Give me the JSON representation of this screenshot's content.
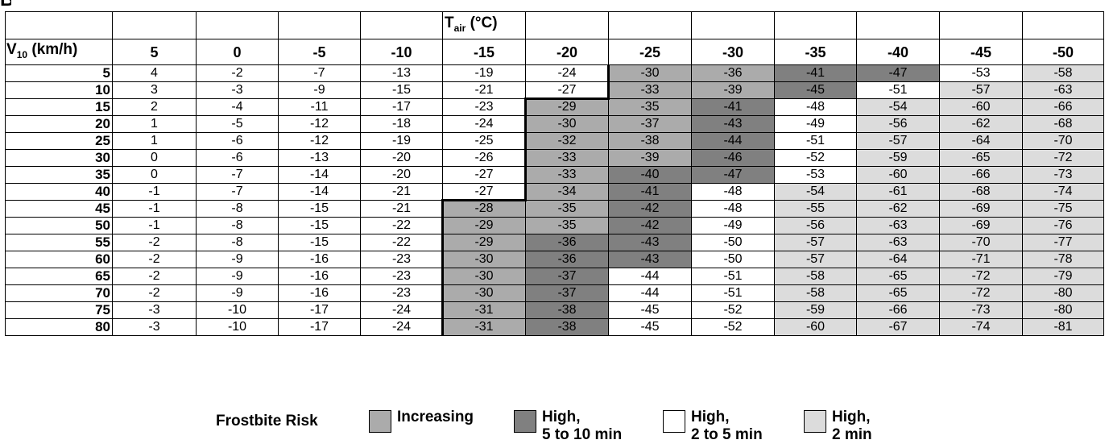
{
  "panel_label": "B",
  "table": {
    "temp_header": {
      "symbol": "T",
      "subscript": "air",
      "unit": " (°C)"
    },
    "wind_header": {
      "symbol": "V",
      "subscript": "10",
      "unit": " (km/h)"
    },
    "temperatures": [
      "5",
      "0",
      "-5",
      "-10",
      "-15",
      "-20",
      "-25",
      "-30",
      "-35",
      "-40",
      "-45",
      "-50"
    ],
    "rows": [
      {
        "wind": "5",
        "values": [
          "4",
          "-2",
          "-7",
          "-13",
          "-19",
          "-24",
          "-30",
          "-36",
          "-41",
          "-47",
          "-53",
          "-58"
        ],
        "risk": [
          "none",
          "none",
          "none",
          "none",
          "none",
          "none",
          "inc",
          "inc",
          "h510",
          "h510",
          "h25",
          "h2"
        ]
      },
      {
        "wind": "10",
        "values": [
          "3",
          "-3",
          "-9",
          "-15",
          "-21",
          "-27",
          "-33",
          "-39",
          "-45",
          "-51",
          "-57",
          "-63"
        ],
        "risk": [
          "none",
          "none",
          "none",
          "none",
          "none",
          "none",
          "inc",
          "inc",
          "h510",
          "h25",
          "h2",
          "h2"
        ]
      },
      {
        "wind": "15",
        "values": [
          "2",
          "-4",
          "-11",
          "-17",
          "-23",
          "-29",
          "-35",
          "-41",
          "-48",
          "-54",
          "-60",
          "-66"
        ],
        "risk": [
          "none",
          "none",
          "none",
          "none",
          "none",
          "inc",
          "inc",
          "h510",
          "h25",
          "h2",
          "h2",
          "h2"
        ]
      },
      {
        "wind": "20",
        "values": [
          "1",
          "-5",
          "-12",
          "-18",
          "-24",
          "-30",
          "-37",
          "-43",
          "-49",
          "-56",
          "-62",
          "-68"
        ],
        "risk": [
          "none",
          "none",
          "none",
          "none",
          "none",
          "inc",
          "inc",
          "h510",
          "h25",
          "h2",
          "h2",
          "h2"
        ]
      },
      {
        "wind": "25",
        "values": [
          "1",
          "-6",
          "-12",
          "-19",
          "-25",
          "-32",
          "-38",
          "-44",
          "-51",
          "-57",
          "-64",
          "-70"
        ],
        "risk": [
          "none",
          "none",
          "none",
          "none",
          "none",
          "inc",
          "inc",
          "h510",
          "h25",
          "h2",
          "h2",
          "h2"
        ]
      },
      {
        "wind": "30",
        "values": [
          "0",
          "-6",
          "-13",
          "-20",
          "-26",
          "-33",
          "-39",
          "-46",
          "-52",
          "-59",
          "-65",
          "-72"
        ],
        "risk": [
          "none",
          "none",
          "none",
          "none",
          "none",
          "inc",
          "inc",
          "h510",
          "h25",
          "h2",
          "h2",
          "h2"
        ]
      },
      {
        "wind": "35",
        "values": [
          "0",
          "-7",
          "-14",
          "-20",
          "-27",
          "-33",
          "-40",
          "-47",
          "-53",
          "-60",
          "-66",
          "-73"
        ],
        "risk": [
          "none",
          "none",
          "none",
          "none",
          "none",
          "inc",
          "h510",
          "h510",
          "h25",
          "h2",
          "h2",
          "h2"
        ]
      },
      {
        "wind": "40",
        "values": [
          "-1",
          "-7",
          "-14",
          "-21",
          "-27",
          "-34",
          "-41",
          "-48",
          "-54",
          "-61",
          "-68",
          "-74"
        ],
        "risk": [
          "none",
          "none",
          "none",
          "none",
          "none",
          "inc",
          "h510",
          "h25",
          "h2",
          "h2",
          "h2",
          "h2"
        ]
      },
      {
        "wind": "45",
        "values": [
          "-1",
          "-8",
          "-15",
          "-21",
          "-28",
          "-35",
          "-42",
          "-48",
          "-55",
          "-62",
          "-69",
          "-75"
        ],
        "risk": [
          "none",
          "none",
          "none",
          "none",
          "inc",
          "inc",
          "h510",
          "h25",
          "h2",
          "h2",
          "h2",
          "h2"
        ]
      },
      {
        "wind": "50",
        "values": [
          "-1",
          "-8",
          "-15",
          "-22",
          "-29",
          "-35",
          "-42",
          "-49",
          "-56",
          "-63",
          "-69",
          "-76"
        ],
        "risk": [
          "none",
          "none",
          "none",
          "none",
          "inc",
          "inc",
          "h510",
          "h25",
          "h2",
          "h2",
          "h2",
          "h2"
        ]
      },
      {
        "wind": "55",
        "values": [
          "-2",
          "-8",
          "-15",
          "-22",
          "-29",
          "-36",
          "-43",
          "-50",
          "-57",
          "-63",
          "-70",
          "-77"
        ],
        "risk": [
          "none",
          "none",
          "none",
          "none",
          "inc",
          "h510",
          "h510",
          "h25",
          "h2",
          "h2",
          "h2",
          "h2"
        ]
      },
      {
        "wind": "60",
        "values": [
          "-2",
          "-9",
          "-16",
          "-23",
          "-30",
          "-36",
          "-43",
          "-50",
          "-57",
          "-64",
          "-71",
          "-78"
        ],
        "risk": [
          "none",
          "none",
          "none",
          "none",
          "inc",
          "h510",
          "h510",
          "h25",
          "h2",
          "h2",
          "h2",
          "h2"
        ]
      },
      {
        "wind": "65",
        "values": [
          "-2",
          "-9",
          "-16",
          "-23",
          "-30",
          "-37",
          "-44",
          "-51",
          "-58",
          "-65",
          "-72",
          "-79"
        ],
        "risk": [
          "none",
          "none",
          "none",
          "none",
          "inc",
          "h510",
          "h25",
          "h25",
          "h2",
          "h2",
          "h2",
          "h2"
        ]
      },
      {
        "wind": "70",
        "values": [
          "-2",
          "-9",
          "-16",
          "-23",
          "-30",
          "-37",
          "-44",
          "-51",
          "-58",
          "-65",
          "-72",
          "-80"
        ],
        "risk": [
          "none",
          "none",
          "none",
          "none",
          "inc",
          "h510",
          "h25",
          "h25",
          "h2",
          "h2",
          "h2",
          "h2"
        ]
      },
      {
        "wind": "75",
        "values": [
          "-3",
          "-10",
          "-17",
          "-24",
          "-31",
          "-38",
          "-45",
          "-52",
          "-59",
          "-66",
          "-73",
          "-80"
        ],
        "risk": [
          "none",
          "none",
          "none",
          "none",
          "inc",
          "h510",
          "h25",
          "h25",
          "h2",
          "h2",
          "h2",
          "h2"
        ]
      },
      {
        "wind": "80",
        "values": [
          "-3",
          "-10",
          "-17",
          "-24",
          "-31",
          "-38",
          "-45",
          "-52",
          "-60",
          "-67",
          "-74",
          "-81"
        ],
        "risk": [
          "none",
          "none",
          "none",
          "none",
          "inc",
          "h510",
          "h25",
          "h25",
          "h2",
          "h2",
          "h2",
          "h2"
        ]
      }
    ]
  },
  "legend": {
    "title": "Frostbite Risk",
    "items": [
      {
        "key": "inc",
        "label": "Increasing",
        "color": "#ababab"
      },
      {
        "key": "h510",
        "label": "High,\n5 to 10 min",
        "color": "#808080"
      },
      {
        "key": "h25",
        "label": "High,\n2 to 5 min",
        "color": "#ffffff"
      },
      {
        "key": "h2",
        "label": "High,\n2 min",
        "color": "#dcdcdc"
      }
    ]
  }
}
